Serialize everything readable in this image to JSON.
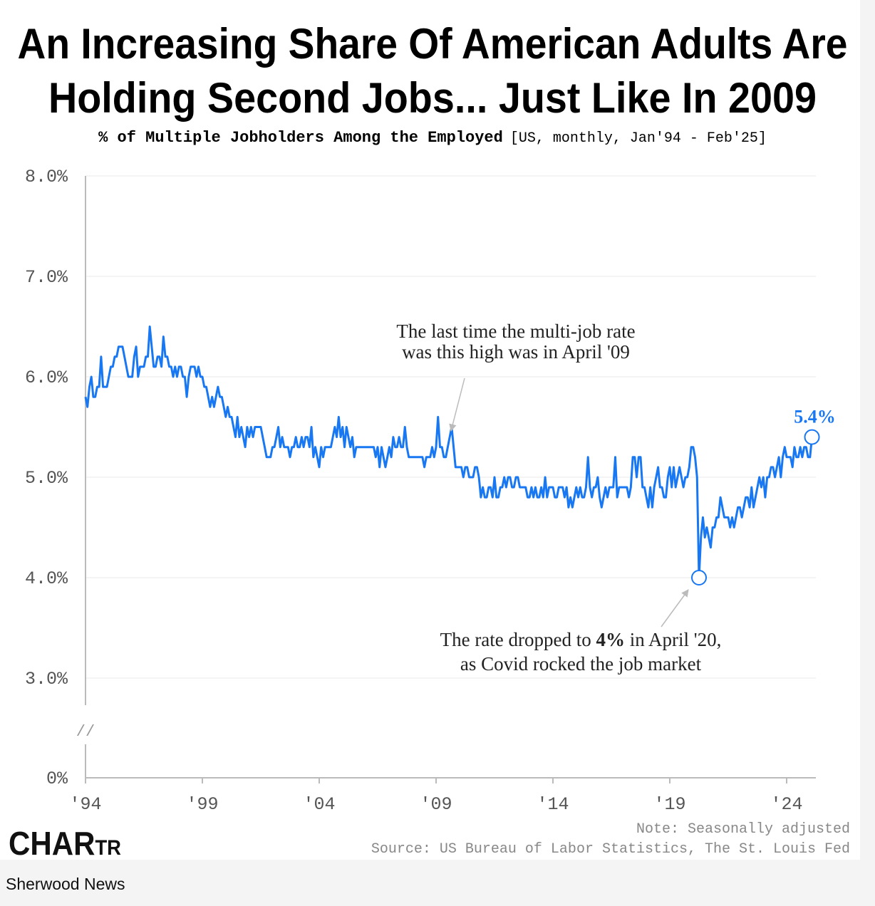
{
  "chart_data": {
    "type": "line",
    "title_lines": [
      "An Increasing Share Of American Adults Are",
      "Holding Second Jobs... Just Like In 2009"
    ],
    "subtitle_bold": "% of Multiple Jobholders Among the Employed",
    "subtitle_note": "[US, monthly, Jan'94 - Feb'25]",
    "xlim": [
      1994,
      2025.25
    ],
    "xticks": [
      {
        "value": 1994,
        "label": "'94"
      },
      {
        "value": 1999,
        "label": "'99"
      },
      {
        "value": 2004,
        "label": "'04"
      },
      {
        "value": 2009,
        "label": "'09"
      },
      {
        "value": 2014,
        "label": "'14"
      },
      {
        "value": 2019,
        "label": "'19"
      },
      {
        "value": 2024,
        "label": "'24"
      }
    ],
    "ylim": [
      3,
      8
    ],
    "yticks": [
      {
        "value": 0,
        "label": "0%"
      },
      {
        "value": 3,
        "label": "3.0%"
      },
      {
        "value": 4,
        "label": "4.0%"
      },
      {
        "value": 5,
        "label": "5.0%"
      },
      {
        "value": 6,
        "label": "6.0%"
      },
      {
        "value": 7,
        "label": "7.0%"
      },
      {
        "value": 8,
        "label": "8.0%"
      }
    ],
    "grid": true,
    "axis_break": "//",
    "series": [
      {
        "color": "#1877f2",
        "x": [
          1994,
          1994.083,
          1994.167,
          1994.25,
          1994.333,
          1994.417,
          1994.5,
          1994.583,
          1994.667,
          1994.75,
          1994.833,
          1994.917,
          1995,
          1995.083,
          1995.167,
          1995.25,
          1995.333,
          1995.417,
          1995.5,
          1995.583,
          1995.667,
          1995.75,
          1995.833,
          1995.917,
          1996,
          1996.083,
          1996.167,
          1996.25,
          1996.333,
          1996.417,
          1996.5,
          1996.583,
          1996.667,
          1996.75,
          1996.833,
          1996.917,
          1997,
          1997.083,
          1997.167,
          1997.25,
          1997.333,
          1997.417,
          1997.5,
          1997.583,
          1997.667,
          1997.75,
          1997.833,
          1997.917,
          1998,
          1998.083,
          1998.167,
          1998.25,
          1998.333,
          1998.417,
          1998.5,
          1998.583,
          1998.667,
          1998.75,
          1998.833,
          1998.917,
          1999,
          1999.083,
          1999.167,
          1999.25,
          1999.333,
          1999.417,
          1999.5,
          1999.583,
          1999.667,
          1999.75,
          1999.833,
          1999.917,
          2000,
          2000.083,
          2000.167,
          2000.25,
          2000.333,
          2000.417,
          2000.5,
          2000.583,
          2000.667,
          2000.75,
          2000.833,
          2000.917,
          2001,
          2001.083,
          2001.167,
          2001.25,
          2001.333,
          2001.417,
          2001.5,
          2001.583,
          2001.667,
          2001.75,
          2001.833,
          2001.917,
          2002,
          2002.083,
          2002.167,
          2002.25,
          2002.333,
          2002.417,
          2002.5,
          2002.583,
          2002.667,
          2002.75,
          2002.833,
          2002.917,
          2003,
          2003.083,
          2003.167,
          2003.25,
          2003.333,
          2003.417,
          2003.5,
          2003.583,
          2003.667,
          2003.75,
          2003.833,
          2003.917,
          2004,
          2004.083,
          2004.167,
          2004.25,
          2004.333,
          2004.417,
          2004.5,
          2004.583,
          2004.667,
          2004.75,
          2004.833,
          2004.917,
          2005,
          2005.083,
          2005.167,
          2005.25,
          2005.333,
          2005.417,
          2005.5,
          2005.583,
          2005.667,
          2005.75,
          2005.833,
          2005.917,
          2006,
          2006.083,
          2006.167,
          2006.25,
          2006.333,
          2006.417,
          2006.5,
          2006.583,
          2006.667,
          2006.75,
          2006.833,
          2006.917,
          2007,
          2007.083,
          2007.167,
          2007.25,
          2007.333,
          2007.417,
          2007.5,
          2007.583,
          2007.667,
          2007.75,
          2007.833,
          2007.917,
          2008,
          2008.083,
          2008.167,
          2008.25,
          2008.333,
          2008.417,
          2008.5,
          2008.583,
          2008.667,
          2008.75,
          2008.833,
          2008.917,
          2009,
          2009.083,
          2009.167,
          2009.25,
          2009.333,
          2009.417,
          2009.5,
          2009.583,
          2009.667,
          2009.75,
          2009.833,
          2009.917,
          2010,
          2010.083,
          2010.167,
          2010.25,
          2010.333,
          2010.417,
          2010.5,
          2010.583,
          2010.667,
          2010.75,
          2010.833,
          2010.917,
          2011,
          2011.083,
          2011.167,
          2011.25,
          2011.333,
          2011.417,
          2011.5,
          2011.583,
          2011.667,
          2011.75,
          2011.833,
          2011.917,
          2012,
          2012.083,
          2012.167,
          2012.25,
          2012.333,
          2012.417,
          2012.5,
          2012.583,
          2012.667,
          2012.75,
          2012.833,
          2012.917,
          2013,
          2013.083,
          2013.167,
          2013.25,
          2013.333,
          2013.417,
          2013.5,
          2013.583,
          2013.667,
          2013.75,
          2013.833,
          2013.917,
          2014,
          2014.083,
          2014.167,
          2014.25,
          2014.333,
          2014.417,
          2014.5,
          2014.583,
          2014.667,
          2014.75,
          2014.833,
          2014.917,
          2015,
          2015.083,
          2015.167,
          2015.25,
          2015.333,
          2015.417,
          2015.5,
          2015.583,
          2015.667,
          2015.75,
          2015.833,
          2015.917,
          2016,
          2016.083,
          2016.167,
          2016.25,
          2016.333,
          2016.417,
          2016.5,
          2016.583,
          2016.667,
          2016.75,
          2016.833,
          2016.917,
          2017,
          2017.083,
          2017.167,
          2017.25,
          2017.333,
          2017.417,
          2017.5,
          2017.583,
          2017.667,
          2017.75,
          2017.833,
          2017.917,
          2018,
          2018.083,
          2018.167,
          2018.25,
          2018.333,
          2018.417,
          2018.5,
          2018.583,
          2018.667,
          2018.75,
          2018.833,
          2018.917,
          2019,
          2019.083,
          2019.167,
          2019.25,
          2019.333,
          2019.417,
          2019.5,
          2019.583,
          2019.667,
          2019.75,
          2019.833,
          2019.917,
          2020,
          2020.083,
          2020.167,
          2020.25,
          2020.333,
          2020.417,
          2020.5,
          2020.583,
          2020.667,
          2020.75,
          2020.833,
          2020.917,
          2021,
          2021.083,
          2021.167,
          2021.25,
          2021.333,
          2021.417,
          2021.5,
          2021.583,
          2021.667,
          2021.75,
          2021.833,
          2021.917,
          2022,
          2022.083,
          2022.167,
          2022.25,
          2022.333,
          2022.417,
          2022.5,
          2022.583,
          2022.667,
          2022.75,
          2022.833,
          2022.917,
          2023,
          2023.083,
          2023.167,
          2023.25,
          2023.333,
          2023.417,
          2023.5,
          2023.583,
          2023.667,
          2023.75,
          2023.833,
          2023.917,
          2024,
          2024.083,
          2024.167,
          2024.25,
          2024.333,
          2024.417,
          2024.5,
          2024.583,
          2024.667,
          2024.75,
          2024.833,
          2024.917,
          2025,
          2025.083
        ],
        "values": [
          5.8,
          5.7,
          5.9,
          6.0,
          5.8,
          5.8,
          5.9,
          5.9,
          6.2,
          5.9,
          5.9,
          5.9,
          6.0,
          6.1,
          6.1,
          6.2,
          6.2,
          6.3,
          6.3,
          6.3,
          6.2,
          6.1,
          6.0,
          6.0,
          6.0,
          6.2,
          6.3,
          6.0,
          6.1,
          6.1,
          6.1,
          6.2,
          6.2,
          6.5,
          6.3,
          6.1,
          6.1,
          6.2,
          6.2,
          6.1,
          6.4,
          6.2,
          6.2,
          6.1,
          6.1,
          6.0,
          6.1,
          6.0,
          6.1,
          6.1,
          6.0,
          6.0,
          5.8,
          6.0,
          6.1,
          6.1,
          6.1,
          6.0,
          6.1,
          6.0,
          6.0,
          5.9,
          5.9,
          5.8,
          5.7,
          5.8,
          5.7,
          5.8,
          5.9,
          5.8,
          5.8,
          5.7,
          5.6,
          5.7,
          5.6,
          5.6,
          5.5,
          5.4,
          5.6,
          5.4,
          5.5,
          5.4,
          5.3,
          5.5,
          5.4,
          5.5,
          5.4,
          5.5,
          5.5,
          5.5,
          5.5,
          5.4,
          5.3,
          5.2,
          5.2,
          5.2,
          5.3,
          5.3,
          5.4,
          5.5,
          5.3,
          5.4,
          5.3,
          5.3,
          5.3,
          5.2,
          5.3,
          5.3,
          5.4,
          5.3,
          5.3,
          5.4,
          5.3,
          5.4,
          5.4,
          5.3,
          5.5,
          5.2,
          5.3,
          5.2,
          5.1,
          5.3,
          5.2,
          5.3,
          5.3,
          5.3,
          5.3,
          5.4,
          5.5,
          5.4,
          5.6,
          5.4,
          5.5,
          5.3,
          5.5,
          5.4,
          5.3,
          5.4,
          5.2,
          5.3,
          5.3,
          5.3,
          5.3,
          5.3,
          5.3,
          5.3,
          5.3,
          5.3,
          5.3,
          5.2,
          5.3,
          5.1,
          5.3,
          5.2,
          5.1,
          5.2,
          5.3,
          5.2,
          5.4,
          5.3,
          5.3,
          5.4,
          5.3,
          5.3,
          5.5,
          5.3,
          5.2,
          5.2,
          5.2,
          5.2,
          5.2,
          5.2,
          5.2,
          5.2,
          5.1,
          5.2,
          5.2,
          5.2,
          5.3,
          5.2,
          5.3,
          5.6,
          5.3,
          5.3,
          5.2,
          5.2,
          5.3,
          5.4,
          5.5,
          5.3,
          5.1,
          5.1,
          5.1,
          5.1,
          5.0,
          5.1,
          5.1,
          5.0,
          5.0,
          5.0,
          5.1,
          5.1,
          5.0,
          4.8,
          4.9,
          4.8,
          4.8,
          4.9,
          4.9,
          4.8,
          5.0,
          4.8,
          4.8,
          4.9,
          4.9,
          5.0,
          4.9,
          5.0,
          5.0,
          4.9,
          4.9,
          5.0,
          5.0,
          4.9,
          4.9,
          4.9,
          4.9,
          4.8,
          4.8,
          4.9,
          4.8,
          4.9,
          4.8,
          4.8,
          4.9,
          4.8,
          5.0,
          4.8,
          4.9,
          4.9,
          4.9,
          4.8,
          4.8,
          4.9,
          4.9,
          4.9,
          4.8,
          4.9,
          4.7,
          4.8,
          4.7,
          4.8,
          4.9,
          4.8,
          4.9,
          4.8,
          4.8,
          4.9,
          5.2,
          4.9,
          4.8,
          4.9,
          4.9,
          5.0,
          4.8,
          4.7,
          4.8,
          4.9,
          4.8,
          4.9,
          4.9,
          4.9,
          5.2,
          4.8,
          4.9,
          4.9,
          4.9,
          4.9,
          4.9,
          4.8,
          4.9,
          5.2,
          5.2,
          5.0,
          5.2,
          5.2,
          4.9,
          4.9,
          4.8,
          4.7,
          4.9,
          4.7,
          4.9,
          5.0,
          5.1,
          4.9,
          4.9,
          4.8,
          4.8,
          5.0,
          5.1,
          4.9,
          5.1,
          4.9,
          5.0,
          5.1,
          5.0,
          4.9,
          5.0,
          5.0,
          5.1,
          5.3,
          5.3,
          5.2,
          5.0,
          4.0,
          4.4,
          4.6,
          4.4,
          4.5,
          4.4,
          4.3,
          4.5,
          4.5,
          4.6,
          4.6,
          4.8,
          4.7,
          4.6,
          4.6,
          4.6,
          4.5,
          4.6,
          4.5,
          4.6,
          4.7,
          4.7,
          4.6,
          4.7,
          4.8,
          4.8,
          4.7,
          4.9,
          4.7,
          4.8,
          4.9,
          5.0,
          4.9,
          5.0,
          4.8,
          5.0,
          5.0,
          5.1,
          5.1,
          5.0,
          5.1,
          5.2,
          5.0,
          5.2,
          5.3,
          5.2,
          5.2,
          5.2,
          5.1,
          5.3,
          5.2,
          5.2,
          5.3,
          5.2,
          5.3,
          5.3,
          5.2,
          5.2,
          5.4
        ]
      }
    ],
    "markers": [
      {
        "x": 2020.25,
        "y": 4.0
      },
      {
        "x": 2025.083,
        "y": 5.4,
        "label": "5.4%"
      }
    ],
    "annotations": [
      {
        "lines": [
          "The last time the multi-job rate",
          "was this high was in April '09"
        ]
      },
      {
        "line1_before": "The rate dropped to ",
        "line1_bold": "4%",
        "line1_after": " in April '20,",
        "line2": "as Covid rocked the job market"
      }
    ],
    "note": "Note: Seasonally adjusted",
    "source": "Source: US Bureau of Labor Statistics, The St. Louis Fed",
    "logo_main": "CHAR",
    "logo_small": "TR",
    "footer": "Sherwood News"
  }
}
